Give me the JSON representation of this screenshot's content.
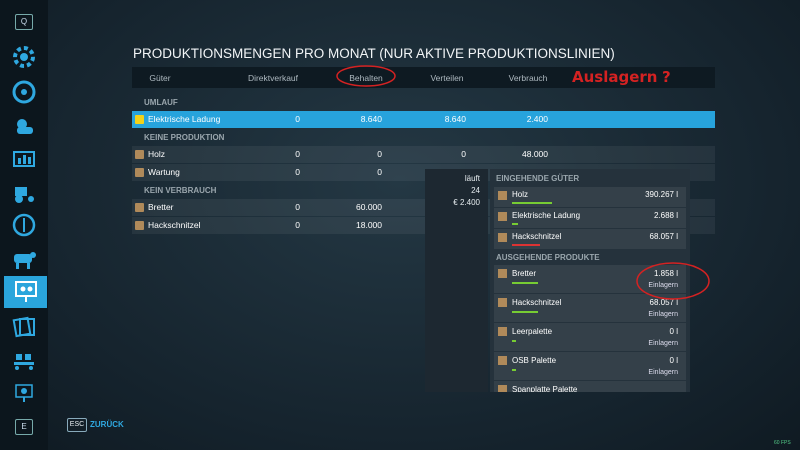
{
  "sidebar": {
    "top_key": "Q",
    "bottom_key": "E"
  },
  "title": "PRODUKTIONSMENGEN PRO MONAT (NUR AKTIVE PRODUKTIONSLINIEN)",
  "annotation": "Auslagern",
  "annotation_mark": "?",
  "table": {
    "columns": [
      "Güter",
      "Direktverkauf",
      "Behalten",
      "Verteilen",
      "Verbrauch"
    ],
    "sections": [
      {
        "label": "UMLAUF",
        "rows": [
          [
            "Elektrische Ladung",
            "0",
            "8.640",
            "8.640",
            "2.400"
          ]
        ]
      },
      {
        "label": "KEINE PRODUKTION",
        "rows": [
          [
            "Holz",
            "0",
            "0",
            "0",
            "48.000"
          ],
          [
            "Wartung",
            "0",
            "0"
          ]
        ]
      },
      {
        "label": "KEIN VERBRAUCH",
        "rows": [
          [
            "Bretter",
            "0",
            "60.000"
          ],
          [
            "Hackschnitzel",
            "0",
            "18.000"
          ]
        ]
      }
    ]
  },
  "status_panel": {
    "status": "läuft",
    "count": "24",
    "cost": "€ 2.400"
  },
  "storage_panel": {
    "incoming": {
      "label": "EINGEHENDE GÜTER",
      "items": [
        {
          "name": "Holz",
          "amount": "390.267 l"
        },
        {
          "name": "Elektrische Ladung",
          "amount": "2.688 l"
        },
        {
          "name": "Hackschnitzel",
          "amount": "68.057 l"
        }
      ]
    },
    "outgoing": {
      "label": "AUSGEHENDE PRODUKTE",
      "items": [
        {
          "name": "Bretter",
          "amount": "1.858 l",
          "action": "Einlagern"
        },
        {
          "name": "Hackschnitzel",
          "amount": "68.057 l",
          "action": "Einlagern"
        },
        {
          "name": "Leerpalette",
          "amount": "0 l",
          "action": "Einlagern"
        },
        {
          "name": "OSB Palette",
          "amount": "0 l",
          "action": "Einlagern"
        },
        {
          "name": "Spanplatte Palette"
        }
      ]
    }
  },
  "footer": {
    "key": "ESC",
    "label": "ZURÜCK",
    "fps": "60 FPS"
  }
}
